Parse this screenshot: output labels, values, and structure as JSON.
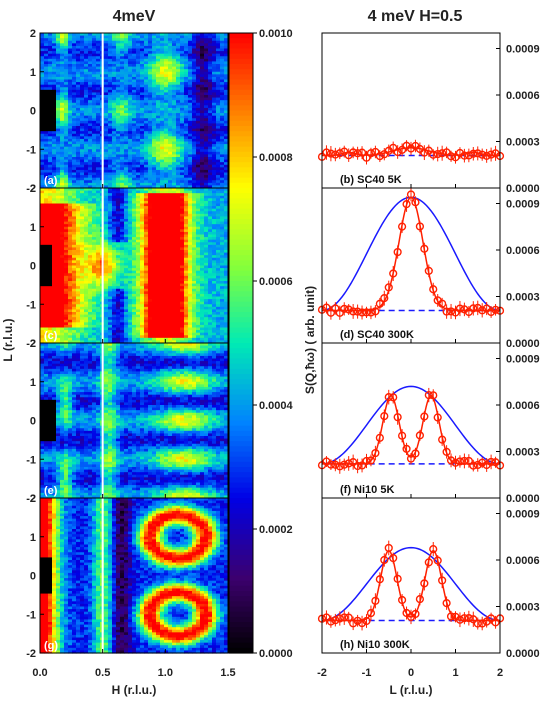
{
  "figure": {
    "left_title": "4meV",
    "right_title": "4 meV H=0.5"
  },
  "colorbar": {
    "tick_labels": [
      "0.0010",
      "0.0008",
      "0.0006",
      "0.0004",
      "0.0002",
      "0.0000"
    ]
  },
  "chart_data": [
    {
      "type": "heatmap",
      "xlabel": "H (r.l.u.)",
      "ylabel": "L (r.l.u.)",
      "xlim": [
        0.0,
        1.5
      ],
      "ylim": [
        -2,
        2
      ],
      "x_tick_labels": [
        "0.0",
        "0.5",
        "1.0",
        "1.5"
      ],
      "y_tick_labels": [
        "2",
        "1",
        "0",
        "-1",
        "-2"
      ],
      "colorbar_range": [
        0.0,
        0.001
      ],
      "vertical_line_at_H": 0.5,
      "panels": [
        {
          "label": "(a)"
        },
        {
          "label": "(c)"
        },
        {
          "label": "(e)"
        },
        {
          "label": "(g)"
        }
      ]
    },
    {
      "type": "scatter",
      "xlabel": "L (r.l.u.)",
      "ylabel": "S(Q,ħω) ( arb. unit)",
      "xlim": [
        -2,
        2
      ],
      "ylim": [
        0.0,
        0.001
      ],
      "x_tick_labels": [
        "-2",
        "-1",
        "0",
        "1",
        "2"
      ],
      "y_tick_labels": [
        "0.0009",
        "0.0006",
        "0.0003",
        "0.0000"
      ],
      "panels": [
        {
          "label": "(b) SC40   5K",
          "background": 0.00021,
          "peaks": [],
          "data_peak": 0.00026,
          "envelope_peak": null
        },
        {
          "label": "(d) SC40 300K",
          "background": 0.00021,
          "peaks": [
            0.0
          ],
          "data_peak": 0.00094,
          "envelope_peak": 0.00094
        },
        {
          "label": "(f) Ni10   5K",
          "background": 0.00022,
          "peaks": [
            -0.45,
            0.45
          ],
          "data_peak": 0.00066,
          "envelope_peak": 0.00072
        },
        {
          "label": "(h) Ni10 300K",
          "background": 0.00021,
          "peaks": [
            -0.5,
            0.5
          ],
          "data_peak": 0.00066,
          "envelope_peak": 0.00068
        }
      ]
    }
  ]
}
